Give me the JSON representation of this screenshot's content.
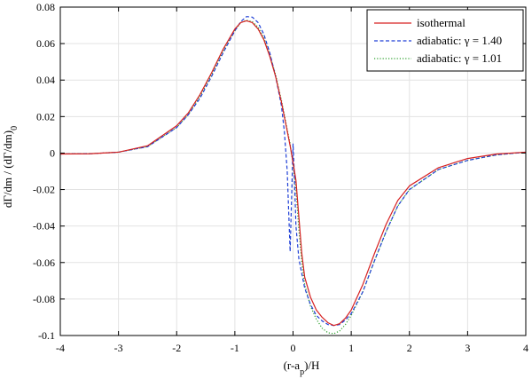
{
  "chart_data": {
    "type": "line",
    "title": "",
    "xlabel": "(r-a_p)/H",
    "xlabel_main": "(r-a",
    "xlabel_sub": "p",
    "xlabel_tail": ")/H",
    "ylabel": "dΓ/dm / (dΓ/dm)_0",
    "ylabel_main": "dΓ/dm / (dΓ/dm)",
    "ylabel_sub": "0",
    "xlim": [
      -4,
      4
    ],
    "ylim": [
      -0.1,
      0.08
    ],
    "xticks": [
      -4,
      -3,
      -2,
      -1,
      0,
      1,
      2,
      3,
      4
    ],
    "xtick_labels": [
      "-4",
      "-3",
      "-2",
      "-1",
      "0",
      "1",
      "2",
      "3",
      "4"
    ],
    "yticks": [
      -0.1,
      -0.08,
      -0.06,
      -0.04,
      -0.02,
      0,
      0.02,
      0.04,
      0.06,
      0.08
    ],
    "ytick_labels": [
      "-0.1",
      "-0.08",
      "-0.06",
      "-0.04",
      "-0.02",
      "0",
      "0.02",
      "0.04",
      "0.06",
      "0.08"
    ],
    "grid": true,
    "legend_position": "top-right",
    "series": [
      {
        "name": "isothermal",
        "color": "#d62020",
        "style": "solid",
        "x": [
          -4,
          -3.5,
          -3,
          -2.5,
          -2,
          -1.8,
          -1.6,
          -1.4,
          -1.2,
          -1.0,
          -0.9,
          -0.8,
          -0.7,
          -0.6,
          -0.5,
          -0.4,
          -0.3,
          -0.2,
          -0.1,
          -0.05,
          0.0,
          0.05,
          0.1,
          0.15,
          0.2,
          0.3,
          0.4,
          0.5,
          0.6,
          0.7,
          0.8,
          0.9,
          1.0,
          1.2,
          1.4,
          1.6,
          1.8,
          2.0,
          2.5,
          3.0,
          3.5,
          4.0
        ],
        "y": [
          -0.0005,
          -0.0004,
          0.0005,
          0.004,
          0.015,
          0.022,
          0.032,
          0.044,
          0.057,
          0.068,
          0.0715,
          0.0725,
          0.0715,
          0.068,
          0.062,
          0.053,
          0.042,
          0.028,
          0.012,
          0.004,
          -0.005,
          -0.015,
          -0.035,
          -0.055,
          -0.068,
          -0.079,
          -0.086,
          -0.09,
          -0.093,
          -0.0945,
          -0.0935,
          -0.0905,
          -0.086,
          -0.072,
          -0.055,
          -0.039,
          -0.026,
          -0.018,
          -0.008,
          -0.003,
          -0.0005,
          0.0005
        ]
      },
      {
        "name": "adiabatic: γ = 1.40",
        "color": "#1f3fd6",
        "style": "dashed",
        "x": [
          -4,
          -3.5,
          -3,
          -2.5,
          -2,
          -1.8,
          -1.6,
          -1.4,
          -1.2,
          -1.0,
          -0.9,
          -0.8,
          -0.7,
          -0.6,
          -0.5,
          -0.4,
          -0.3,
          -0.2,
          -0.15,
          -0.1,
          -0.05,
          0.0,
          0.02,
          0.05,
          0.1,
          0.15,
          0.2,
          0.3,
          0.4,
          0.5,
          0.6,
          0.7,
          0.8,
          0.9,
          1.0,
          1.2,
          1.4,
          1.6,
          1.8,
          2.0,
          2.5,
          3.0,
          3.5,
          4.0
        ],
        "y": [
          -0.0005,
          -0.0004,
          0.0005,
          0.0035,
          0.014,
          0.021,
          0.03,
          0.042,
          0.055,
          0.067,
          0.072,
          0.0748,
          0.0745,
          0.0715,
          0.065,
          0.055,
          0.042,
          0.026,
          0.012,
          -0.01,
          -0.054,
          0.005,
          -0.01,
          -0.04,
          -0.058,
          -0.066,
          -0.074,
          -0.083,
          -0.089,
          -0.092,
          -0.094,
          -0.0945,
          -0.094,
          -0.0915,
          -0.088,
          -0.076,
          -0.059,
          -0.043,
          -0.029,
          -0.02,
          -0.009,
          -0.004,
          -0.001,
          0.0005
        ]
      },
      {
        "name": "adiabatic: γ = 1.01",
        "color": "#2ca02c",
        "style": "dotted",
        "x": [
          -4,
          -3.5,
          -3,
          -2.5,
          -2,
          -1.8,
          -1.6,
          -1.4,
          -1.2,
          -1.0,
          -0.9,
          -0.8,
          -0.7,
          -0.6,
          -0.5,
          -0.4,
          -0.3,
          -0.2,
          -0.1,
          -0.05,
          0.0,
          0.05,
          0.1,
          0.15,
          0.2,
          0.3,
          0.4,
          0.5,
          0.6,
          0.7,
          0.8,
          0.9,
          1.0,
          1.2,
          1.4,
          1.6,
          1.8,
          2.0,
          2.5,
          3.0,
          3.5,
          4.0
        ],
        "y": [
          -0.0005,
          -0.0004,
          0.0005,
          0.0035,
          0.014,
          0.021,
          0.031,
          0.043,
          0.056,
          0.067,
          0.0715,
          0.0728,
          0.072,
          0.069,
          0.063,
          0.054,
          0.043,
          0.029,
          0.013,
          0.005,
          -0.006,
          -0.02,
          -0.042,
          -0.06,
          -0.072,
          -0.084,
          -0.091,
          -0.096,
          -0.0985,
          -0.099,
          -0.0975,
          -0.094,
          -0.089,
          -0.076,
          -0.059,
          -0.043,
          -0.029,
          -0.02,
          -0.009,
          -0.004,
          -0.001,
          0.0005
        ]
      }
    ]
  }
}
